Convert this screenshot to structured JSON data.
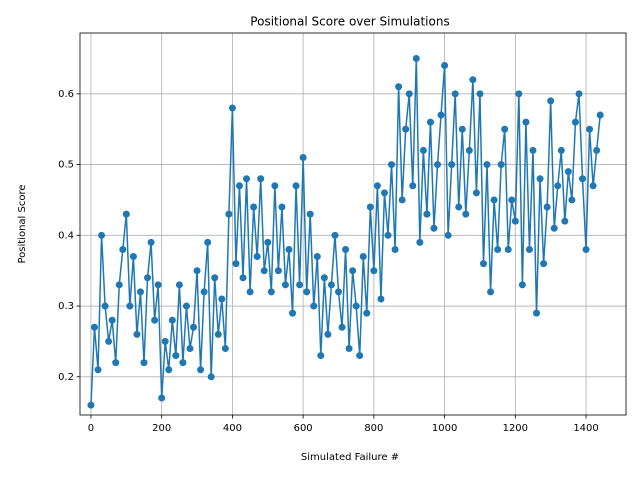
{
  "chart_data": {
    "type": "line",
    "title": "Positional Score over Simulations",
    "x_label": "Simulated Failure #",
    "y_label": "Positional Score",
    "x": [
      0,
      10,
      20,
      30,
      40,
      50,
      60,
      70,
      80,
      90,
      100,
      110,
      120,
      130,
      140,
      150,
      160,
      170,
      180,
      190,
      200,
      210,
      220,
      230,
      240,
      250,
      260,
      270,
      280,
      290,
      300,
      310,
      320,
      330,
      340,
      350,
      360,
      370,
      380,
      390,
      400,
      410,
      420,
      430,
      440,
      450,
      460,
      470,
      480,
      490,
      500,
      510,
      520,
      530,
      540,
      550,
      560,
      570,
      580,
      590,
      600,
      610,
      620,
      630,
      640,
      650,
      660,
      670,
      680,
      690,
      700,
      710,
      720,
      730,
      740,
      750,
      760,
      770,
      780,
      790,
      800,
      810,
      820,
      830,
      840,
      850,
      860,
      870,
      880,
      890,
      900,
      910,
      920,
      930,
      940,
      950,
      960,
      970,
      980,
      990,
      1000,
      1010,
      1020,
      1030,
      1040,
      1050,
      1060,
      1070,
      1080,
      1090,
      1100,
      1110,
      1120,
      1130,
      1140,
      1150,
      1160,
      1170,
      1180,
      1190,
      1200,
      1210,
      1220,
      1230,
      1240,
      1250,
      1260,
      1270,
      1280,
      1290,
      1300,
      1310,
      1320,
      1330,
      1340,
      1350,
      1360,
      1370,
      1380,
      1390,
      1400,
      1410,
      1420,
      1430,
      1440
    ],
    "series": [
      {
        "name": "Positional Score",
        "color": "#1f77b4",
        "values": [
          0.16,
          0.27,
          0.21,
          0.4,
          0.3,
          0.25,
          0.28,
          0.22,
          0.33,
          0.38,
          0.43,
          0.3,
          0.37,
          0.26,
          0.32,
          0.22,
          0.34,
          0.39,
          0.28,
          0.33,
          0.17,
          0.25,
          0.21,
          0.28,
          0.23,
          0.33,
          0.22,
          0.3,
          0.24,
          0.27,
          0.35,
          0.21,
          0.32,
          0.39,
          0.2,
          0.34,
          0.26,
          0.31,
          0.24,
          0.43,
          0.58,
          0.36,
          0.47,
          0.34,
          0.48,
          0.32,
          0.44,
          0.37,
          0.48,
          0.35,
          0.39,
          0.32,
          0.47,
          0.35,
          0.44,
          0.33,
          0.38,
          0.29,
          0.47,
          0.33,
          0.51,
          0.32,
          0.43,
          0.3,
          0.37,
          0.23,
          0.34,
          0.26,
          0.33,
          0.4,
          0.32,
          0.27,
          0.38,
          0.24,
          0.35,
          0.3,
          0.23,
          0.37,
          0.29,
          0.44,
          0.35,
          0.47,
          0.31,
          0.46,
          0.4,
          0.5,
          0.38,
          0.61,
          0.45,
          0.55,
          0.6,
          0.47,
          0.65,
          0.39,
          0.52,
          0.43,
          0.56,
          0.41,
          0.5,
          0.57,
          0.64,
          0.4,
          0.5,
          0.6,
          0.44,
          0.55,
          0.43,
          0.52,
          0.62,
          0.46,
          0.6,
          0.36,
          0.5,
          0.32,
          0.45,
          0.38,
          0.5,
          0.55,
          0.38,
          0.45,
          0.42,
          0.6,
          0.33,
          0.56,
          0.38,
          0.52,
          0.29,
          0.48,
          0.36,
          0.44,
          0.59,
          0.41,
          0.47,
          0.52,
          0.42,
          0.49,
          0.45,
          0.56,
          0.6,
          0.48,
          0.38,
          0.55,
          0.47,
          0.52,
          0.57
        ]
      }
    ],
    "xlim": [
      -31,
      1513
    ],
    "ylim": [
      0.146,
      0.686
    ],
    "xticks": [
      0,
      200,
      400,
      600,
      800,
      1000,
      1200,
      1400
    ],
    "yticks": [
      0.2,
      0.3,
      0.4,
      0.5,
      0.6
    ],
    "grid": true,
    "markers": true
  }
}
